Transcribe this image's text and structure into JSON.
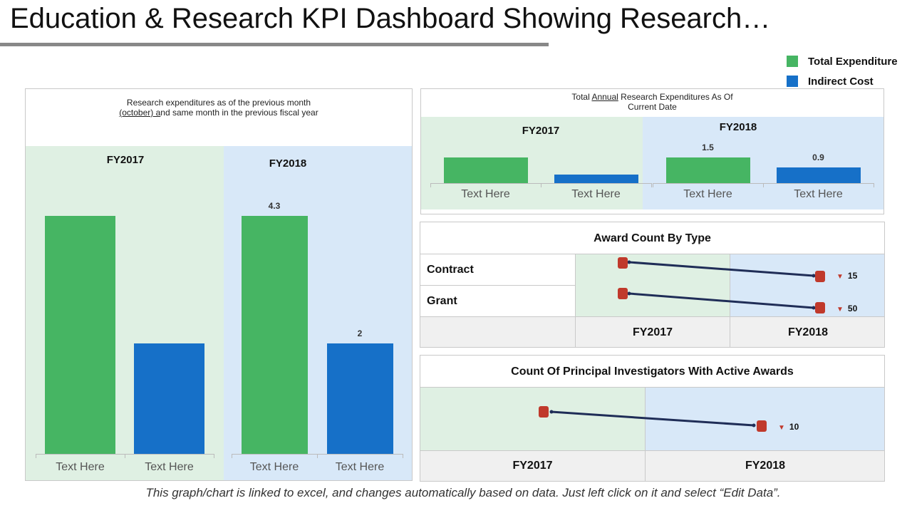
{
  "title": "Education & Research KPI Dashboard Showing Research…",
  "legend": {
    "items": [
      {
        "label": "Total Expenditure",
        "color": "#46b563"
      },
      {
        "label": "Indirect Cost",
        "color": "#1670c8"
      }
    ]
  },
  "colors": {
    "green": "#46b563",
    "blue": "#1670c8",
    "marker": "#c0392b",
    "line": "#1f2d57"
  },
  "left_panel": {
    "heading_pre": "Research expenditures as of the previous month",
    "heading_underlined": "(october) a",
    "heading_post": "nd same month in the previous fiscal year"
  },
  "top_right_panel": {
    "heading_pre": "Total ",
    "heading_underlined": "Annual",
    "heading_post": " Research Expenditures As Of Current Date"
  },
  "award_panel": {
    "title": "Award Count By Type",
    "rows": [
      {
        "label": "Contract",
        "delta": "15"
      },
      {
        "label": "Grant",
        "delta": "50"
      }
    ],
    "columns": [
      "FY2017",
      "FY2018"
    ]
  },
  "pi_panel": {
    "title": "Count Of Principal Investigators With Active Awards",
    "delta": "10",
    "columns": [
      "FY2017",
      "FY2018"
    ]
  },
  "footer": "This graph/chart is linked to excel, and changes automatically based on data. Just left click on it and select “Edit Data”.",
  "chart_data": [
    {
      "type": "bar",
      "title": "Research expenditures as of the previous month (october) and same month in the previous fiscal year",
      "ylim": [
        0,
        5
      ],
      "groups": [
        {
          "name": "FY2017",
          "categories": [
            "Text Here",
            "Text Here"
          ],
          "values": [
            4.3,
            2.0
          ],
          "labels": [
            "",
            ""
          ]
        },
        {
          "name": "FY2018",
          "categories": [
            "Text Here",
            "Text Here"
          ],
          "values": [
            4.3,
            2.0
          ],
          "labels": [
            "4.3",
            "2"
          ]
        }
      ],
      "series": [
        {
          "name": "Total Expenditure"
        },
        {
          "name": "Indirect Cost"
        }
      ]
    },
    {
      "type": "bar",
      "title": "Total Annual Research Expenditures As Of Current Date",
      "ylim": [
        0,
        2
      ],
      "groups": [
        {
          "name": "FY2017",
          "categories": [
            "Text Here",
            "Text Here"
          ],
          "values": [
            1.5,
            0.5
          ],
          "labels": [
            "",
            ""
          ]
        },
        {
          "name": "FY2018",
          "categories": [
            "Text Here",
            "Text Here"
          ],
          "values": [
            1.5,
            0.9
          ],
          "labels": [
            "1.5",
            "0.9"
          ]
        }
      ],
      "series": [
        {
          "name": "Total Expenditure"
        },
        {
          "name": "Indirect Cost"
        }
      ]
    },
    {
      "type": "line",
      "title": "Award Count By Type",
      "categories": [
        "FY2017",
        "FY2018"
      ],
      "series": [
        {
          "name": "Contract",
          "change": "15",
          "direction": "down"
        },
        {
          "name": "Grant",
          "change": "50",
          "direction": "down"
        }
      ]
    },
    {
      "type": "line",
      "title": "Count Of Principal Investigators With Active Awards",
      "categories": [
        "FY2017",
        "FY2018"
      ],
      "series": [
        {
          "change": "10",
          "direction": "down"
        }
      ]
    }
  ]
}
